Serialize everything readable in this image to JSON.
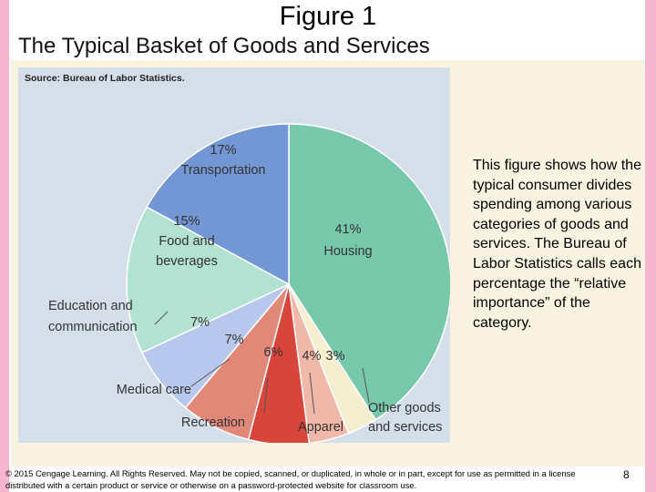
{
  "slide": {
    "title": "Figure 1",
    "subtitle": "The Typical Basket of Goods and Services",
    "description": "This figure shows how the typical consumer divides spending among various categories of goods and services. The Bureau of Labor Statistics calls each percentage the “relative importance” of the category.",
    "footer": "© 2015 Cengage Learning. All Rights Reserved. May not be copied, scanned, or duplicated, in whole or in part, except for use as permitted in a license distributed with a certain product or service or otherwise on a password-protected website for classroom use.",
    "page_number": "8"
  },
  "chart_data": {
    "type": "pie",
    "source": "Source: Bureau of Labor Statistics.",
    "slices": [
      {
        "name": "Housing",
        "value": 41,
        "label_pct": "41%",
        "color": "#78c8ac"
      },
      {
        "name": "Other goods and services",
        "value": 3,
        "label_pct": "3%",
        "color": "#f5efd0"
      },
      {
        "name": "Apparel",
        "value": 4,
        "label_pct": "4%",
        "color": "#f0b8a8"
      },
      {
        "name": "Recreation",
        "value": 6,
        "label_pct": "6%",
        "color": "#d8453a"
      },
      {
        "name": "Medical care",
        "value": 7,
        "label_pct": "7%",
        "color": "#e28878"
      },
      {
        "name": "Education and communication",
        "value": 7,
        "label_pct": "7%",
        "color": "#b8c8ec"
      },
      {
        "name": "Food and beverages",
        "value": 15,
        "label_pct": "15%",
        "color": "#b4e2d2"
      },
      {
        "name": "Transportation",
        "value": 17,
        "label_pct": "17%",
        "color": "#7297d4"
      }
    ]
  }
}
